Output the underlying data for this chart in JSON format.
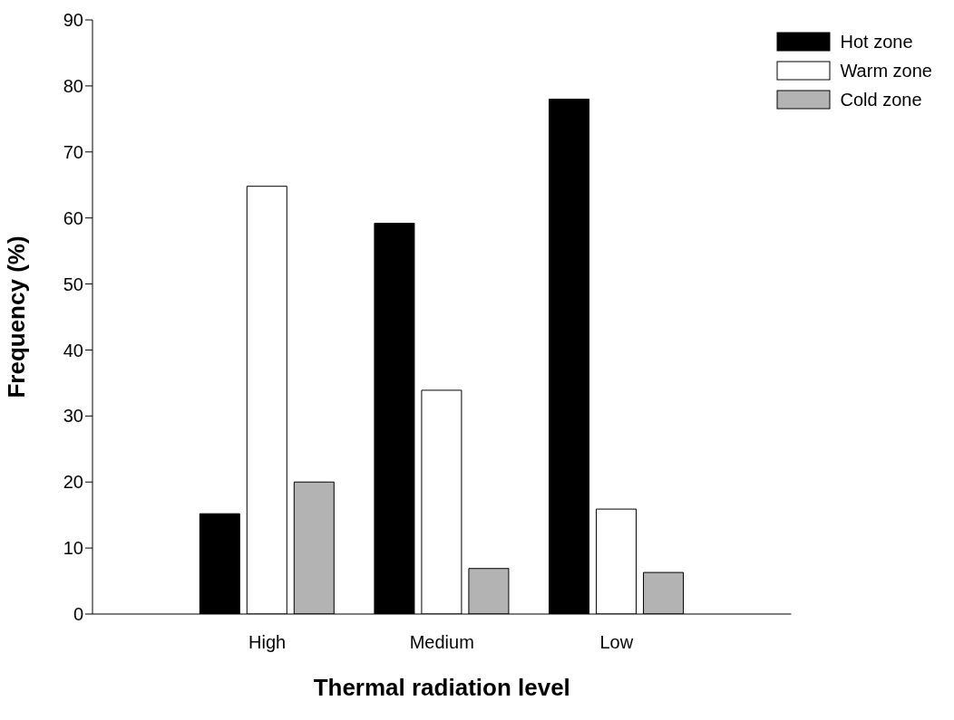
{
  "chart_data": {
    "type": "bar",
    "xlabel": "Thermal radiation level",
    "ylabel": "Frequency (%)",
    "categories": [
      "High",
      "Medium",
      "Low"
    ],
    "series": [
      {
        "name": "Hot zone",
        "color": "#000000",
        "values": [
          15.2,
          59.2,
          78
        ]
      },
      {
        "name": "Warm zone",
        "color": "#ffffff",
        "values": [
          64.8,
          33.9,
          15.9
        ]
      },
      {
        "name": "Cold zone",
        "color": "#b3b3b3",
        "values": [
          20,
          6.9,
          6.3
        ]
      }
    ],
    "ylim": [
      0,
      90
    ],
    "yticks": [
      0,
      10,
      20,
      30,
      40,
      50,
      60,
      70,
      80,
      90
    ],
    "grid": false,
    "legend": "top right"
  }
}
